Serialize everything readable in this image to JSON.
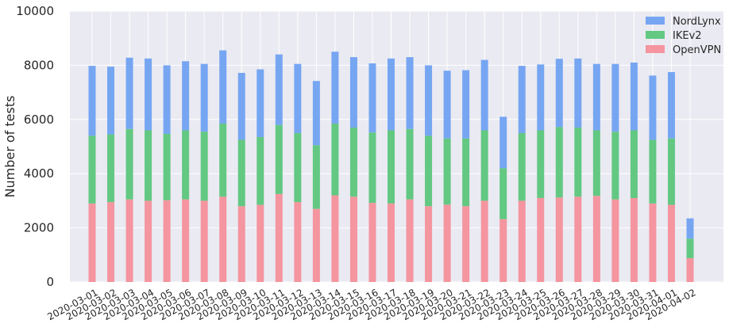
{
  "chart_data": {
    "type": "bar",
    "stacked": true,
    "title": "",
    "xlabel": "",
    "ylabel": "Number of tests",
    "ylim": [
      0,
      10000
    ],
    "yticks": [
      0,
      2000,
      4000,
      6000,
      8000,
      10000
    ],
    "grid": true,
    "legend_position": "top-right",
    "categories": [
      "2020-03-01",
      "2020-03-02",
      "2020-03-03",
      "2020-03-04",
      "2020-03-05",
      "2020-03-06",
      "2020-03-07",
      "2020-03-08",
      "2020-03-09",
      "2020-03-10",
      "2020-03-11",
      "2020-03-12",
      "2020-03-13",
      "2020-03-14",
      "2020-03-15",
      "2020-03-16",
      "2020-03-17",
      "2020-03-18",
      "2020-03-19",
      "2020-03-20",
      "2020-03-21",
      "2020-03-22",
      "2020-03-23",
      "2020-03-24",
      "2020-03-25",
      "2020-03-26",
      "2020-03-27",
      "2020-03-28",
      "2020-03-29",
      "2020-03-30",
      "2020-03-31",
      "2020-04-01",
      "2020-04-02"
    ],
    "series": [
      {
        "name": "OpenVPN",
        "color": "#f4959f",
        "values": [
          2900,
          2950,
          3050,
          3000,
          3020,
          3050,
          3000,
          3150,
          2800,
          2850,
          3250,
          2950,
          2700,
          3200,
          3150,
          2920,
          2900,
          3050,
          2800,
          2860,
          2800,
          3000,
          2320,
          3000,
          3100,
          3120,
          3150,
          3180,
          3050,
          3100,
          2900,
          2850,
          880
        ]
      },
      {
        "name": "IKEv2",
        "color": "#62c882",
        "values": [
          2500,
          2500,
          2600,
          2600,
          2450,
          2550,
          2550,
          2700,
          2450,
          2500,
          2550,
          2550,
          2350,
          2650,
          2550,
          2600,
          2700,
          2600,
          2600,
          2440,
          2500,
          2600,
          1880,
          2500,
          2500,
          2600,
          2550,
          2420,
          2500,
          2500,
          2350,
          2450,
          720
        ]
      },
      {
        "name": "NordLynx",
        "color": "#76a6f2",
        "values": [
          2580,
          2500,
          2630,
          2650,
          2530,
          2550,
          2500,
          2700,
          2470,
          2500,
          2600,
          2550,
          2370,
          2650,
          2600,
          2550,
          2650,
          2650,
          2600,
          2500,
          2520,
          2600,
          1900,
          2480,
          2430,
          2520,
          2550,
          2450,
          2500,
          2500,
          2370,
          2450,
          750
        ]
      }
    ],
    "legend_order": [
      "NordLynx",
      "IKEv2",
      "OpenVPN"
    ]
  }
}
